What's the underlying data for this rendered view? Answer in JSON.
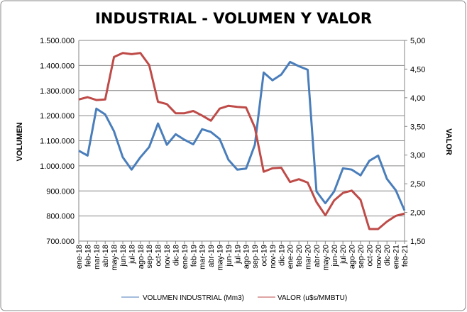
{
  "chart_data": {
    "type": "line",
    "title": "INDUSTRIAL - VOLUMEN Y VALOR",
    "ylabel": "VOLUMEN",
    "y2label": "VALOR",
    "ylim": [
      700000,
      1500000
    ],
    "y2lim": [
      1.5,
      5.0
    ],
    "yticks": [
      "700.000",
      "800.000",
      "900.000",
      "1.000.000",
      "1.100.000",
      "1.200.000",
      "1.300.000",
      "1.400.000",
      "1.500.000"
    ],
    "y2ticks": [
      "1,50",
      "2,00",
      "2,50",
      "3,00",
      "3,50",
      "4,00",
      "4,50",
      "5,00"
    ],
    "grid": true,
    "legend_position": "bottom",
    "categories": [
      "ene-18",
      "feb-18",
      "mar-18",
      "abr-18",
      "may-18",
      "jun-18",
      "jul-18",
      "ago-18",
      "sep-18",
      "oct-18",
      "nov-18",
      "dic-18",
      "ene-19",
      "feb-19",
      "mar-19",
      "abr-19",
      "may-19",
      "jun-19",
      "jul-19",
      "ago-19",
      "sep-19",
      "oct-19",
      "nov-19",
      "dic-19",
      "ene-20",
      "feb-20",
      "mar-20",
      "abr-20",
      "may-20",
      "jun-20",
      "jul-20",
      "ago-20",
      "sep-20",
      "oct-20",
      "nov-20",
      "dic-20",
      "ene-21",
      "feb-21"
    ],
    "series": [
      {
        "name": "VOLUMEN INDUSTRIAL (Mm3)",
        "axis": "left",
        "color": "#4a7ebb",
        "values": [
          1060000,
          1041000,
          1228000,
          1205000,
          1138000,
          1034000,
          985000,
          1034000,
          1075000,
          1169000,
          1084000,
          1126000,
          1104000,
          1086000,
          1146000,
          1135000,
          1107000,
          1024000,
          985000,
          989000,
          1084000,
          1372000,
          1341000,
          1364000,
          1414000,
          1397000,
          1383000,
          898000,
          851000,
          898000,
          990000,
          985000,
          962000,
          1020000,
          1041000,
          948000,
          903000,
          822000
        ]
      },
      {
        "name": "VALOR (u$s/MMBTU)",
        "axis": "right",
        "color": "#be4b48",
        "values": [
          3.97,
          4.01,
          3.96,
          3.97,
          4.71,
          4.78,
          4.76,
          4.78,
          4.57,
          3.93,
          3.89,
          3.73,
          3.73,
          3.77,
          3.69,
          3.6,
          3.81,
          3.86,
          3.84,
          3.83,
          3.48,
          2.71,
          2.77,
          2.78,
          2.53,
          2.58,
          2.52,
          2.18,
          1.95,
          2.21,
          2.34,
          2.38,
          2.22,
          1.71,
          1.71,
          1.84,
          1.94,
          1.98
        ]
      }
    ]
  }
}
